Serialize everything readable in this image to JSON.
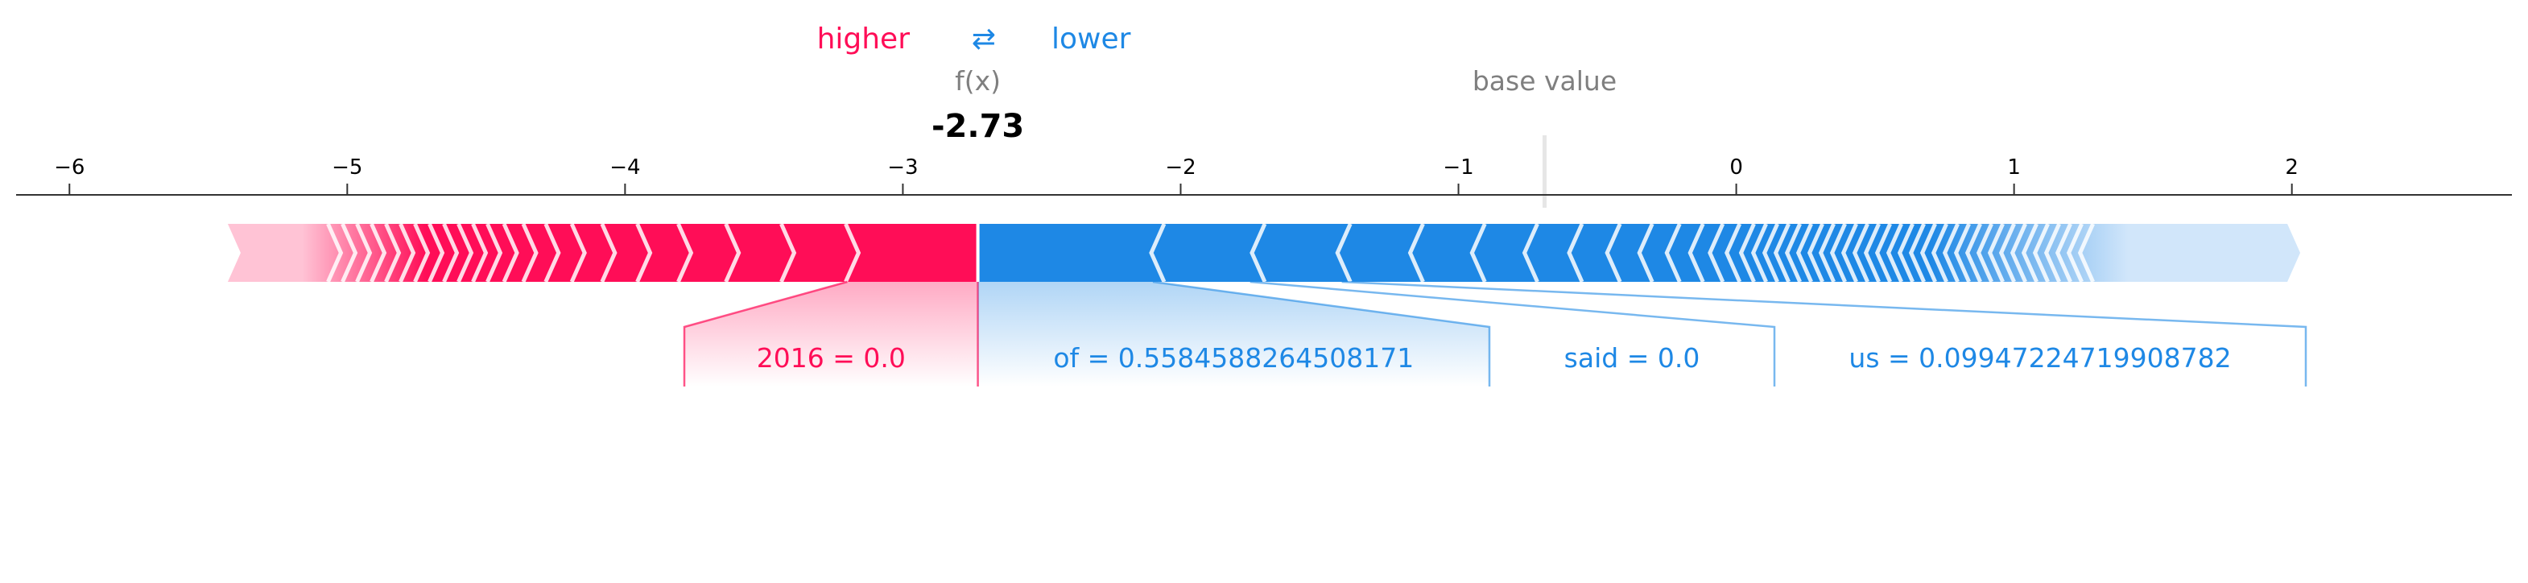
{
  "chart_data": {
    "type": "force",
    "xlim": [
      -6.25,
      2.85
    ],
    "ticks": [
      -6,
      -5,
      -4,
      -3,
      -2,
      -1,
      0,
      1,
      2
    ],
    "tick_labels": [
      "−6",
      "−5",
      "−4",
      "−3",
      "−2",
      "−1",
      "0",
      "1",
      "2"
    ],
    "output_label": "f(x)",
    "output_value": -2.73,
    "output_value_text": "-2.73",
    "base_label": "base value",
    "base_value": -0.69,
    "legend": {
      "higher": "higher",
      "lower": "lower",
      "arrows": "⇄"
    },
    "positive_total_start": -5.43,
    "negative_total_end": 2.03,
    "positive_features": [
      {
        "label": "2016 = 0.0",
        "start": -3.2,
        "end": -2.73
      }
    ],
    "negative_features": [
      {
        "label": "of = 0.5584588264508171",
        "start": -2.73,
        "end": -2.1
      },
      {
        "label": "said = 0.0",
        "start": -2.1,
        "end": -1.75
      },
      {
        "label": "us = 0.09947224719908782",
        "start": -1.75,
        "end": -1.42
      }
    ],
    "colors": {
      "positive": "#ff0d57",
      "positive_light": "#ffc3d5",
      "negative": "#1e88e5",
      "negative_light": "#d1e6fa",
      "axis": "#333333",
      "muted": "#7f7f7f"
    }
  }
}
